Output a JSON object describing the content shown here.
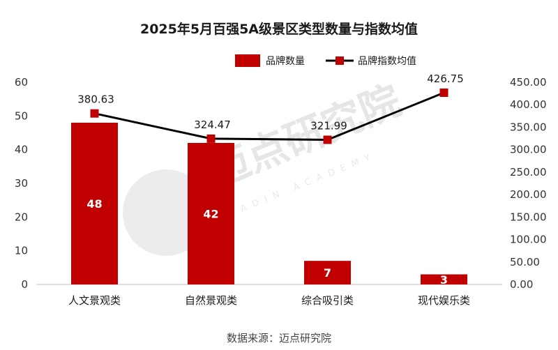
{
  "chart_data": {
    "type": "bar+line",
    "title": "2025年5月百强5A级景区类型数量与指数均值",
    "categories": [
      "人文景观类",
      "自然景观类",
      "综合吸引类",
      "现代娱乐类"
    ],
    "series": [
      {
        "name": "品牌数量",
        "type": "bar",
        "axis": "left",
        "values": [
          48,
          42,
          7,
          3
        ],
        "labels": [
          "48",
          "42",
          "7",
          "3"
        ]
      },
      {
        "name": "品牌指数均值",
        "type": "line",
        "axis": "right",
        "values": [
          380.63,
          324.47,
          321.99,
          426.75
        ],
        "labels": [
          "380.63",
          "324.47",
          "321.99",
          "426.75"
        ]
      }
    ],
    "y_left": {
      "min": 0,
      "max": 60,
      "ticks": [
        "0",
        "10",
        "20",
        "30",
        "40",
        "50",
        "60"
      ]
    },
    "y_right": {
      "min": 0,
      "max": 450,
      "ticks": [
        "0.00",
        "50.00",
        "100.00",
        "150.00",
        "200.00",
        "250.00",
        "300.00",
        "350.00",
        "400.00",
        "450.00"
      ]
    },
    "legend": {
      "position": "top-right",
      "items": [
        "品牌数量",
        "品牌指数均值"
      ]
    },
    "colors": {
      "bar": "#c00000",
      "line": "#000000",
      "marker": "#c00000"
    }
  },
  "watermark": {
    "brand": "迈点研究院",
    "sub": "MEADIN ACADEMY"
  },
  "source": "数据来源：迈点研究院"
}
